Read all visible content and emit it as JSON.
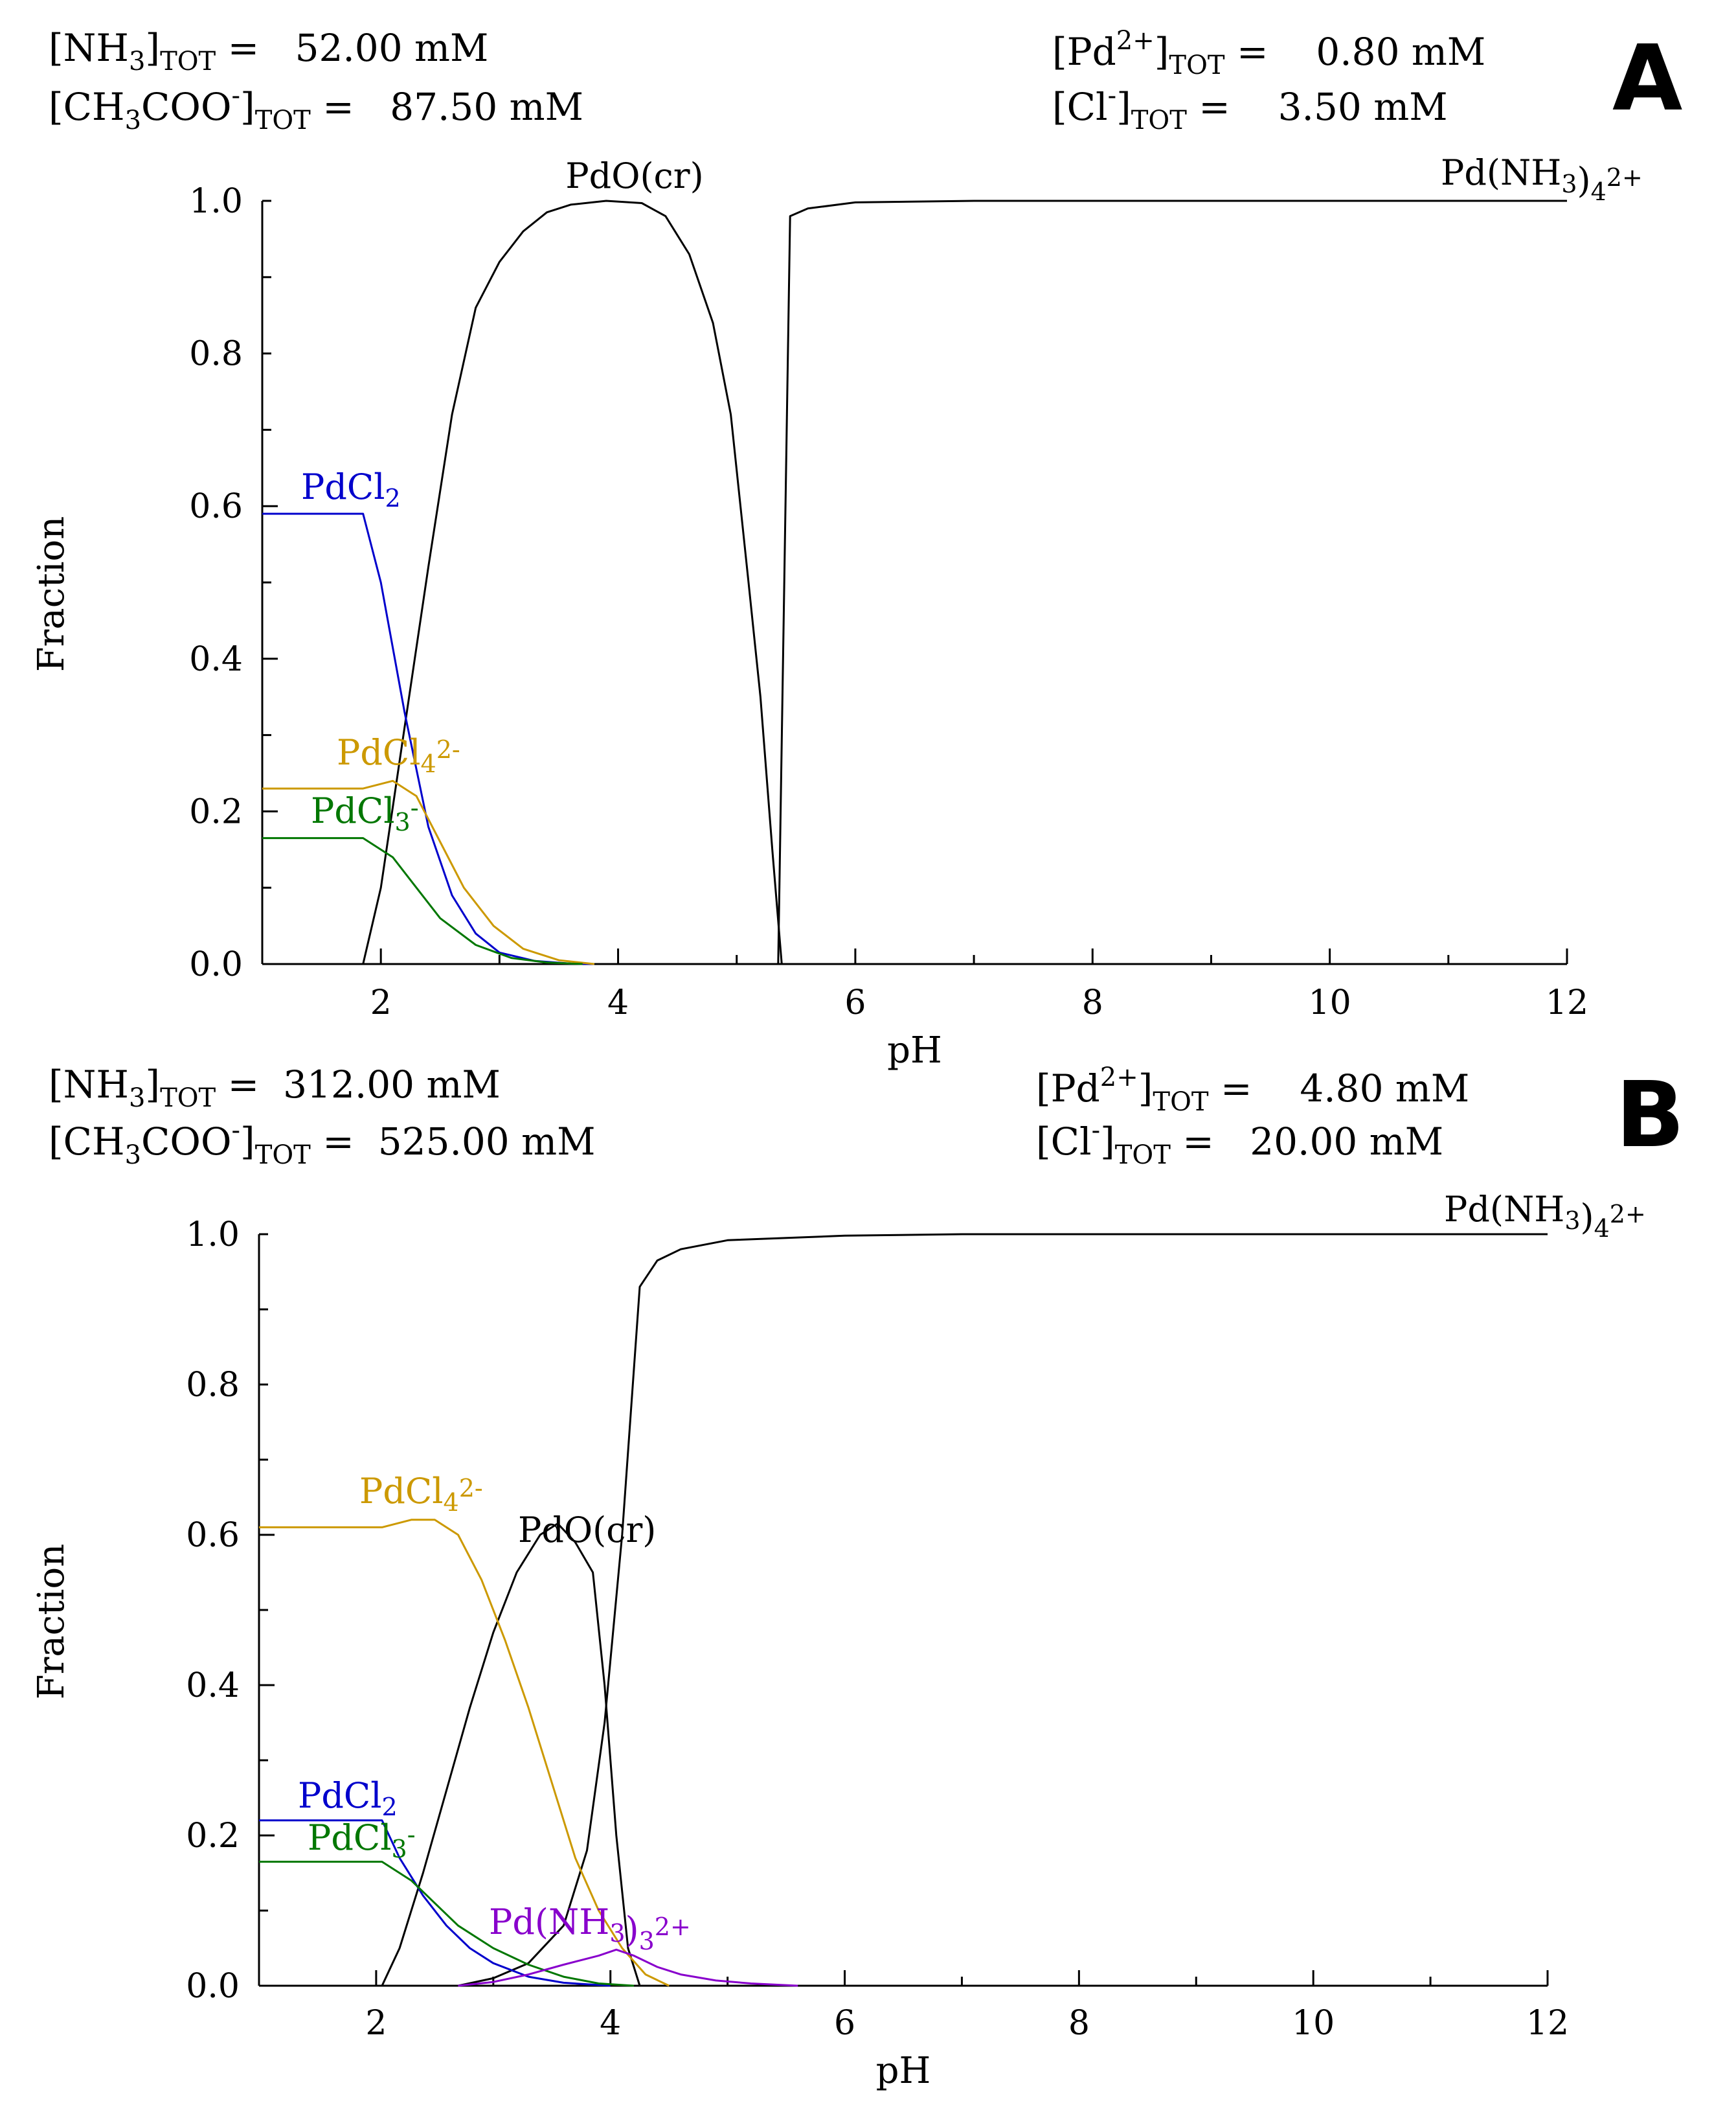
{
  "panels": [
    {
      "letter": "A",
      "params": {
        "nh3": {
          "label": "[NH3]TOT =",
          "value": "52.00 mM"
        },
        "ch3coo": {
          "label": "[CH3COO-]TOT =",
          "value": "87.50 mM"
        },
        "pd": {
          "label": "[Pd2+]TOT =",
          "value": "0.80 mM"
        },
        "cl": {
          "label": "[Cl-]TOT =",
          "value": "3.50 mM"
        }
      }
    },
    {
      "letter": "B",
      "params": {
        "nh3": {
          "label": "[NH3]TOT =",
          "value": "312.00 mM"
        },
        "ch3coo": {
          "label": "[CH3COO-]TOT =",
          "value": "525.00 mM"
        },
        "pd": {
          "label": "[Pd2+]TOT =",
          "value": "4.80 mM"
        },
        "cl": {
          "label": "[Cl-]TOT =",
          "value": "20.00 mM"
        }
      }
    }
  ],
  "chart_data": [
    {
      "type": "line",
      "panel": "A",
      "xlabel": "pH",
      "ylabel": "Fraction",
      "xlim": [
        1,
        12
      ],
      "ylim": [
        0,
        1.0
      ],
      "xticks": [
        2,
        4,
        6,
        8,
        10,
        12
      ],
      "yticks": [
        0.0,
        0.2,
        0.4,
        0.6,
        0.8,
        1.0
      ],
      "series": [
        {
          "name": "Pd(NH3)4 2+",
          "color": "#000000",
          "points": [
            [
              4.8,
              0
            ],
            [
              5.0,
              0
            ],
            [
              5.2,
              0
            ],
            [
              5.35,
              0
            ],
            [
              5.45,
              0.98
            ],
            [
              5.6,
              0.99
            ],
            [
              6.0,
              0.998
            ],
            [
              7,
              1.0
            ],
            [
              12,
              1.0
            ]
          ]
        },
        {
          "name": "PdO(cr)",
          "color": "#000000",
          "points": [
            [
              1.85,
              0
            ],
            [
              2.0,
              0.1
            ],
            [
              2.2,
              0.31
            ],
            [
              2.4,
              0.52
            ],
            [
              2.6,
              0.72
            ],
            [
              2.8,
              0.86
            ],
            [
              3.0,
              0.92
            ],
            [
              3.2,
              0.96
            ],
            [
              3.4,
              0.985
            ],
            [
              3.6,
              0.995
            ],
            [
              3.9,
              1.0
            ],
            [
              4.2,
              0.997
            ],
            [
              4.4,
              0.98
            ],
            [
              4.6,
              0.93
            ],
            [
              4.8,
              0.84
            ],
            [
              4.95,
              0.72
            ],
            [
              5.1,
              0.5
            ],
            [
              5.2,
              0.35
            ],
            [
              5.3,
              0.15
            ],
            [
              5.38,
              0
            ]
          ]
        },
        {
          "name": "PdCl2",
          "color": "#0000cc",
          "points": [
            [
              1,
              0.59
            ],
            [
              1.85,
              0.59
            ],
            [
              2.0,
              0.5
            ],
            [
              2.2,
              0.33
            ],
            [
              2.4,
              0.18
            ],
            [
              2.6,
              0.09
            ],
            [
              2.8,
              0.04
            ],
            [
              3.0,
              0.015
            ],
            [
              3.3,
              0.004
            ],
            [
              3.6,
              0.0005
            ],
            [
              3.8,
              0
            ]
          ]
        },
        {
          "name": "PdCl4 2-",
          "color": "#cc9900",
          "points": [
            [
              1,
              0.23
            ],
            [
              1.85,
              0.23
            ],
            [
              2.1,
              0.24
            ],
            [
              2.3,
              0.22
            ],
            [
              2.5,
              0.16
            ],
            [
              2.7,
              0.1
            ],
            [
              2.95,
              0.05
            ],
            [
              3.2,
              0.02
            ],
            [
              3.5,
              0.005
            ],
            [
              3.8,
              0
            ]
          ]
        },
        {
          "name": "PdCl3 -",
          "color": "#007700",
          "points": [
            [
              1,
              0.165
            ],
            [
              1.85,
              0.165
            ],
            [
              2.1,
              0.14
            ],
            [
              2.3,
              0.1
            ],
            [
              2.5,
              0.06
            ],
            [
              2.8,
              0.025
            ],
            [
              3.1,
              0.008
            ],
            [
              3.4,
              0.002
            ],
            [
              3.7,
              0
            ]
          ]
        }
      ],
      "labels": [
        {
          "text": "PdO(cr)"
        },
        {
          "text": "Pd(NH3)4 2+"
        },
        {
          "text": "PdCl2"
        },
        {
          "text": "PdCl4 2-"
        },
        {
          "text": "PdCl3 -"
        }
      ]
    },
    {
      "type": "line",
      "panel": "B",
      "xlabel": "pH",
      "ylabel": "Fraction",
      "xlim": [
        1,
        12
      ],
      "ylim": [
        0,
        1.0
      ],
      "xticks": [
        2,
        4,
        6,
        8,
        10,
        12
      ],
      "yticks": [
        0.0,
        0.2,
        0.4,
        0.6,
        0.8,
        1.0
      ],
      "series": [
        {
          "name": "Pd(NH3)4 2+",
          "color": "#000000",
          "points": [
            [
              2.7,
              0
            ],
            [
              3.0,
              0.01
            ],
            [
              3.3,
              0.03
            ],
            [
              3.6,
              0.08
            ],
            [
              3.8,
              0.18
            ],
            [
              3.95,
              0.35
            ],
            [
              4.1,
              0.6
            ],
            [
              4.25,
              0.93
            ],
            [
              4.4,
              0.965
            ],
            [
              4.6,
              0.98
            ],
            [
              5.0,
              0.992
            ],
            [
              6.0,
              0.998
            ],
            [
              7,
              1.0
            ],
            [
              12,
              1.0
            ]
          ]
        },
        {
          "name": "PdO(cr)",
          "color": "#000000",
          "points": [
            [
              2.05,
              0
            ],
            [
              2.2,
              0.05
            ],
            [
              2.4,
              0.15
            ],
            [
              2.6,
              0.26
            ],
            [
              2.8,
              0.37
            ],
            [
              3.0,
              0.47
            ],
            [
              3.2,
              0.55
            ],
            [
              3.4,
              0.6
            ],
            [
              3.55,
              0.615
            ],
            [
              3.7,
              0.59
            ],
            [
              3.85,
              0.55
            ],
            [
              3.95,
              0.4
            ],
            [
              4.05,
              0.2
            ],
            [
              4.15,
              0.05
            ],
            [
              4.25,
              0
            ]
          ]
        },
        {
          "name": "PdCl4 2-",
          "color": "#cc9900",
          "points": [
            [
              1,
              0.61
            ],
            [
              2.05,
              0.61
            ],
            [
              2.3,
              0.62
            ],
            [
              2.5,
              0.62
            ],
            [
              2.7,
              0.6
            ],
            [
              2.9,
              0.54
            ],
            [
              3.1,
              0.46
            ],
            [
              3.3,
              0.37
            ],
            [
              3.5,
              0.27
            ],
            [
              3.7,
              0.17
            ],
            [
              3.9,
              0.1
            ],
            [
              4.1,
              0.05
            ],
            [
              4.3,
              0.015
            ],
            [
              4.5,
              0
            ]
          ]
        },
        {
          "name": "PdCl2",
          "color": "#0000cc",
          "points": [
            [
              1,
              0.22
            ],
            [
              2.05,
              0.22
            ],
            [
              2.2,
              0.17
            ],
            [
              2.4,
              0.12
            ],
            [
              2.6,
              0.08
            ],
            [
              2.8,
              0.05
            ],
            [
              3.0,
              0.03
            ],
            [
              3.3,
              0.012
            ],
            [
              3.6,
              0.004
            ],
            [
              4.0,
              0
            ]
          ]
        },
        {
          "name": "PdCl3 -",
          "color": "#007700",
          "points": [
            [
              1,
              0.165
            ],
            [
              2.05,
              0.165
            ],
            [
              2.3,
              0.14
            ],
            [
              2.5,
              0.11
            ],
            [
              2.7,
              0.08
            ],
            [
              3.0,
              0.05
            ],
            [
              3.3,
              0.028
            ],
            [
              3.6,
              0.012
            ],
            [
              3.9,
              0.003
            ],
            [
              4.2,
              0
            ]
          ]
        },
        {
          "name": "Pd(NH3)3 2+",
          "color": "#8800cc",
          "points": [
            [
              2.7,
              0
            ],
            [
              3.0,
              0.005
            ],
            [
              3.3,
              0.015
            ],
            [
              3.6,
              0.028
            ],
            [
              3.9,
              0.04
            ],
            [
              4.05,
              0.048
            ],
            [
              4.2,
              0.04
            ],
            [
              4.4,
              0.025
            ],
            [
              4.6,
              0.015
            ],
            [
              4.9,
              0.007
            ],
            [
              5.2,
              0.003
            ],
            [
              5.6,
              0
            ]
          ]
        }
      ],
      "labels": [
        {
          "text": "Pd(NH3)4 2+"
        },
        {
          "text": "PdCl4 2-"
        },
        {
          "text": "PdO(cr)"
        },
        {
          "text": "PdCl2"
        },
        {
          "text": "PdCl3 -"
        },
        {
          "text": "Pd(NH3)3 2+"
        }
      ]
    }
  ]
}
